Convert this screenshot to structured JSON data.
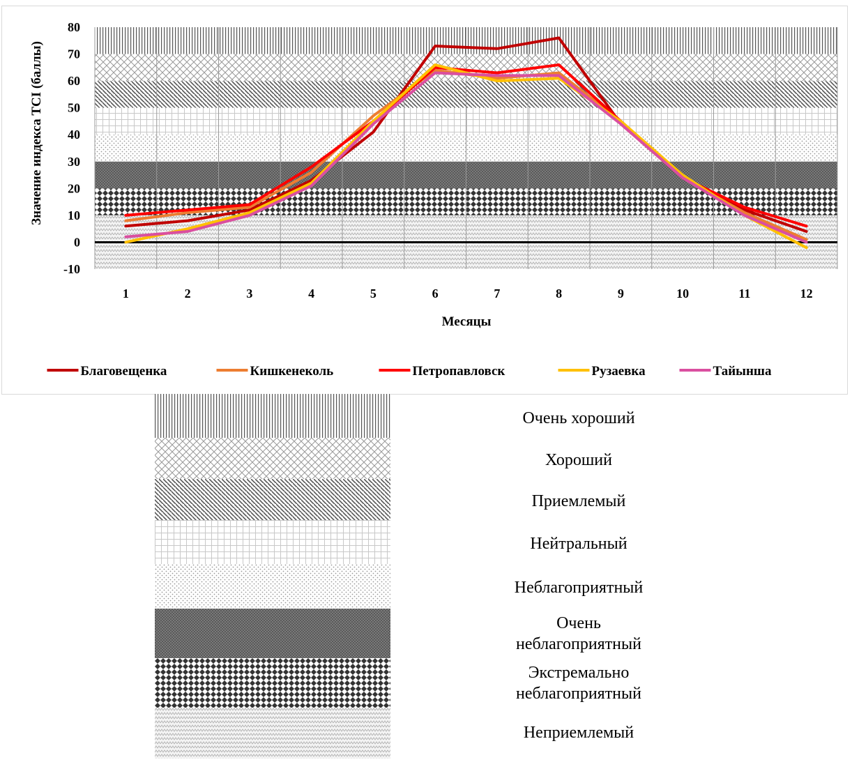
{
  "chart_data": {
    "type": "line",
    "title": "",
    "xlabel": "Месяцы",
    "ylabel": "Значение индекса TCI (баллы)",
    "ylim": [
      -10,
      80
    ],
    "yticks": [
      -10,
      0,
      10,
      20,
      30,
      40,
      50,
      60,
      70,
      80
    ],
    "categories": [
      "1",
      "2",
      "3",
      "4",
      "5",
      "6",
      "7",
      "8",
      "9",
      "10",
      "11",
      "12"
    ],
    "legend_position": "bottom",
    "series": [
      {
        "name": "Благовещенка",
        "color": "#c00000",
        "values": [
          6,
          8,
          12,
          23,
          41,
          73,
          72,
          76,
          44,
          24,
          12,
          4
        ]
      },
      {
        "name": "Кишкенеколь",
        "color": "#ed7d31",
        "values": [
          8,
          11,
          13,
          26,
          47,
          64,
          61,
          63,
          45,
          24,
          11,
          1
        ]
      },
      {
        "name": "Петропавловск",
        "color": "#ff0000",
        "values": [
          10,
          12,
          14,
          28,
          45,
          65,
          63,
          66,
          45,
          24,
          13,
          6
        ]
      },
      {
        "name": "Рузаевка",
        "color": "#ffc000",
        "values": [
          0,
          5,
          11,
          22,
          45,
          66,
          60,
          61,
          45,
          25,
          10,
          -2
        ]
      },
      {
        "name": "Тайынша",
        "color": "#da4fa0",
        "values": [
          2,
          4,
          10,
          21,
          44,
          63,
          62,
          62,
          44,
          24,
          10,
          0
        ]
      }
    ],
    "zones": [
      {
        "from": 70,
        "to": 80,
        "pattern": "vertical-lines",
        "label": "Очень хороший"
      },
      {
        "from": 60,
        "to": 70,
        "pattern": "weave",
        "label": "Хороший"
      },
      {
        "from": 50,
        "to": 60,
        "pattern": "diagonal-lines",
        "label": "Приемлемый"
      },
      {
        "from": 40,
        "to": 50,
        "pattern": "grid",
        "label": "Нейтральный"
      },
      {
        "from": 30,
        "to": 40,
        "pattern": "sparse-dots",
        "label": "Неблагоприятный"
      },
      {
        "from": 20,
        "to": 30,
        "pattern": "dense-dark",
        "label": "Очень\nнеблагоприятный"
      },
      {
        "from": 10,
        "to": 20,
        "pattern": "diamonds",
        "label": "Экстремально\nнеблагоприятный"
      },
      {
        "from": -10,
        "to": 10,
        "pattern": "zigzag",
        "label": "Неприемлемый"
      }
    ]
  }
}
